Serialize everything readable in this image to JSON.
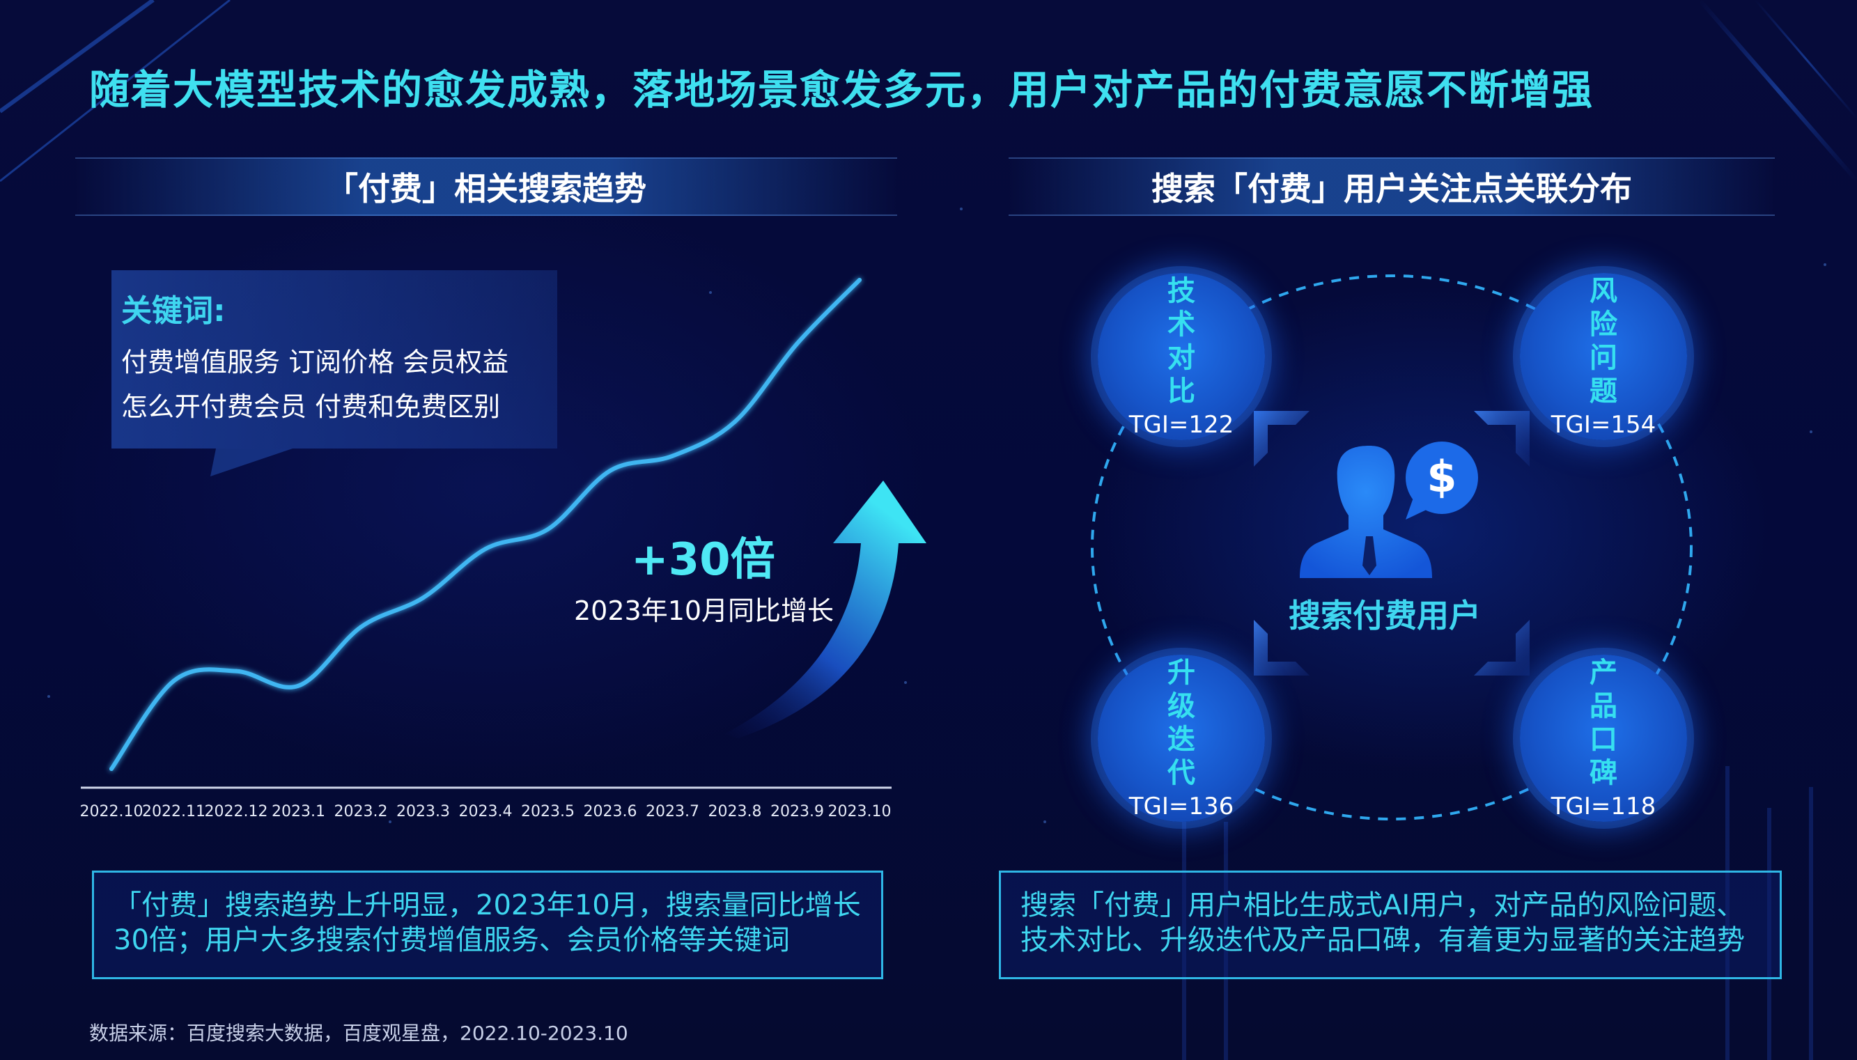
{
  "title": "随着大模型技术的愈发成熟，落地场景愈发多元，用户对产品的付费意愿不断增强",
  "left_panel": {
    "header": "「付费」相关搜索趋势",
    "keywords": {
      "label": "关键词:",
      "line1": "付费增值服务  订阅价格  会员权益",
      "line2": "怎么开付费会员  付费和免费区别"
    },
    "growth": {
      "value": "+30倍",
      "label": "2023年10月同比增长"
    },
    "summary": "「付费」搜索趋势上升明显，2023年10月，搜索量同比增长30倍；用户大多搜索付费增值服务、会员价格等关键词"
  },
  "right_panel": {
    "header": "搜索「付费」用户关注点关联分布",
    "center_label": "搜索付费用户",
    "nodes": [
      {
        "title": "技术对比",
        "tgi": "TGI=122"
      },
      {
        "title": "风险问题",
        "tgi": "TGI=154"
      },
      {
        "title": "升级迭代",
        "tgi": "TGI=136"
      },
      {
        "title": "产品口碑",
        "tgi": "TGI=118"
      }
    ],
    "summary": "搜索「付费」用户相比生成式AI用户，对产品的风险问题、技术对比、升级迭代及产品口碑，有着更为显著的关注趋势"
  },
  "source": "数据来源：百度搜索大数据，百度观星盘，2022.10-2023.10",
  "colors": {
    "accent": "#3fe0f0",
    "line": "#3fb6f2",
    "box_border": "#2fb7e6",
    "bubble": "#1654c8"
  },
  "icons": {
    "growth_arrow": "up-curved-arrow-icon",
    "user": "user-dollar-icon"
  },
  "chart_data": {
    "type": "line",
    "x": [
      "2022.10",
      "2022.11",
      "2022.12",
      "2023.1",
      "2023.2",
      "2023.3",
      "2023.4",
      "2023.5",
      "2023.6",
      "2023.7",
      "2023.8",
      "2023.9",
      "2023.10"
    ],
    "series": [
      {
        "values": [
          0,
          18,
          20,
          17,
          29,
          35,
          45,
          49,
          61,
          64,
          71,
          87,
          100
        ]
      }
    ],
    "ylim": [
      0,
      100
    ],
    "grid": false
  }
}
